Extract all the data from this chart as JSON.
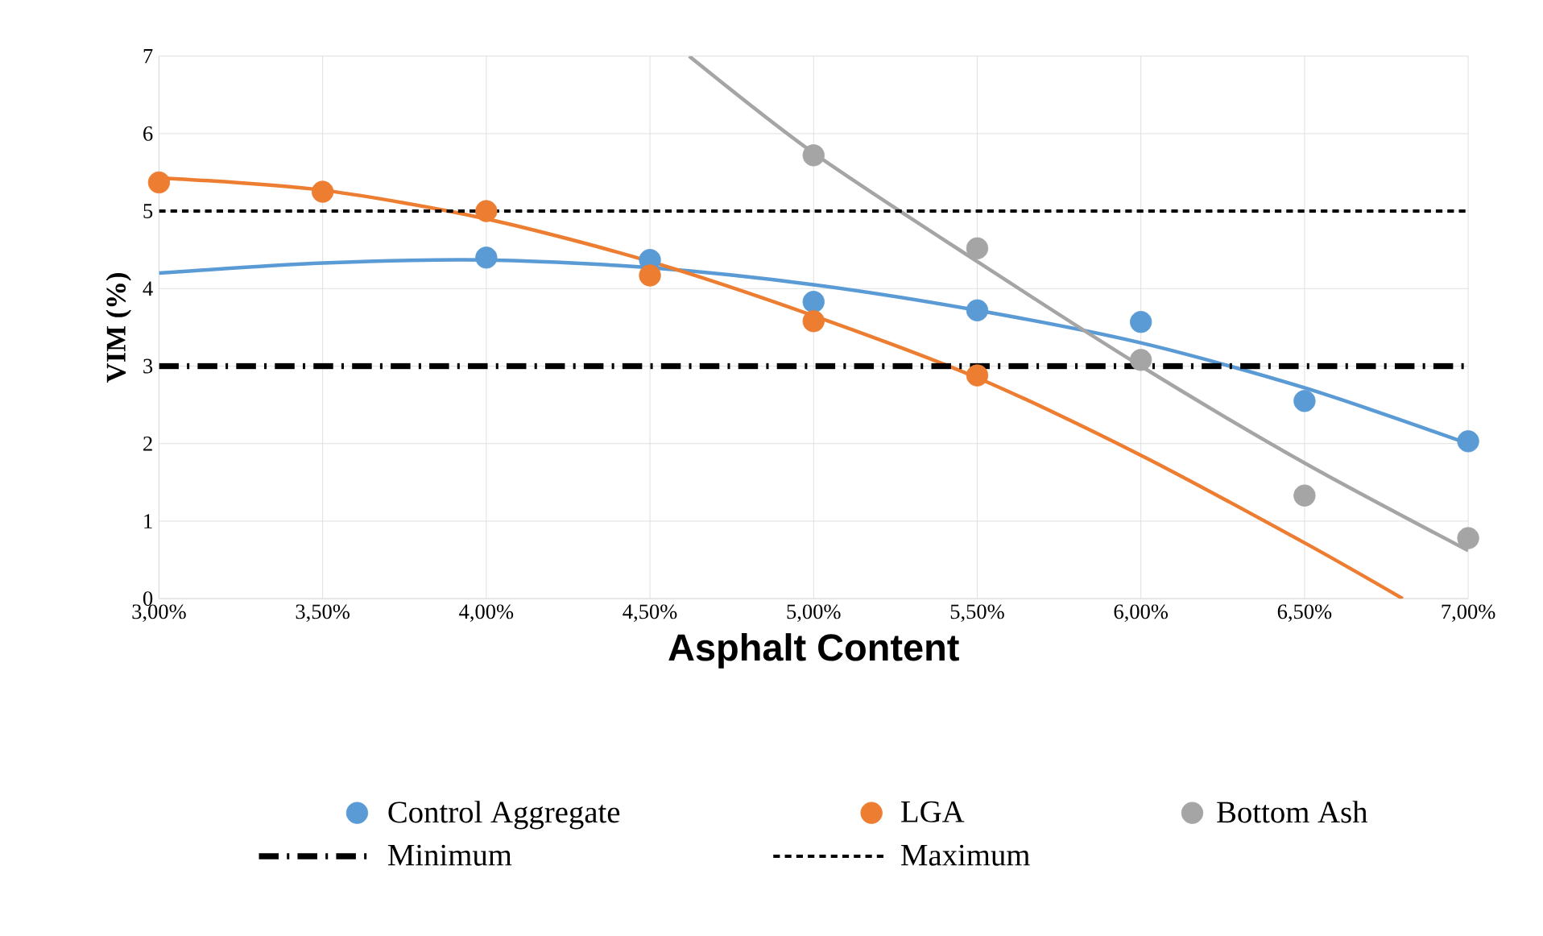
{
  "chart_data": {
    "type": "scatter",
    "xlabel": "Asphalt Content",
    "ylabel": "VIM (%)",
    "xlim": [
      3,
      7
    ],
    "ylim": [
      0,
      7
    ],
    "xticks": [
      {
        "value": 3,
        "label": "3,00%"
      },
      {
        "value": 3.5,
        "label": "3,50%"
      },
      {
        "value": 4,
        "label": "4,00%"
      },
      {
        "value": 4.5,
        "label": "4,50%"
      },
      {
        "value": 5,
        "label": "5,00%"
      },
      {
        "value": 5.5,
        "label": "5,50%"
      },
      {
        "value": 6,
        "label": "6,00%"
      },
      {
        "value": 6.5,
        "label": "6,50%"
      },
      {
        "value": 7,
        "label": "7,00%"
      }
    ],
    "yticks": [
      0,
      1,
      2,
      3,
      4,
      5,
      6,
      7
    ],
    "grid": true,
    "legend": "bottom",
    "series": [
      {
        "name": "Control Aggregate",
        "marker": "circle",
        "color": "#5b9bd5",
        "x": [
          4,
          4.5,
          5,
          5.5,
          6,
          6.5,
          7
        ],
        "values": [
          4.4,
          4.37,
          3.83,
          3.72,
          3.57,
          2.55,
          2.03
        ]
      },
      {
        "name": "LGA",
        "marker": "circle",
        "color": "#ed7d31",
        "x": [
          3,
          3.5,
          4,
          4.5,
          5,
          5.5
        ],
        "values": [
          5.37,
          5.25,
          5.0,
          4.17,
          3.58,
          2.88
        ]
      },
      {
        "name": "Bottom Ash",
        "marker": "circle",
        "color": "#a5a5a5",
        "x": [
          5,
          5.5,
          6,
          6.5,
          7
        ],
        "values": [
          5.72,
          4.52,
          3.08,
          1.33,
          0.78
        ]
      },
      {
        "type": "line",
        "marker": "none",
        "color": "#5b9bd5",
        "x": [
          3,
          3.5,
          4,
          4.5,
          5,
          5.5,
          6,
          6.5,
          7
        ],
        "values": [
          4.2,
          4.33,
          4.37,
          4.27,
          4.05,
          3.72,
          3.3,
          2.72,
          2.0
        ]
      },
      {
        "type": "line",
        "marker": "none",
        "color": "#ed7d31",
        "x": [
          3,
          3.5,
          4,
          4.5,
          5,
          5.5,
          6,
          6.5,
          6.8
        ],
        "values": [
          5.43,
          5.27,
          4.9,
          4.35,
          3.65,
          2.85,
          1.85,
          0.72,
          0
        ]
      },
      {
        "type": "line",
        "marker": "none",
        "color": "#a5a5a5",
        "x": [
          4.62,
          5,
          5.5,
          6,
          6.5,
          7
        ],
        "values": [
          7,
          5.75,
          4.35,
          3.0,
          1.75,
          0.62
        ]
      }
    ],
    "ref_lines": [
      {
        "axis": "y",
        "value": 3,
        "label": "Minimum",
        "color": "#000000",
        "line_style": "dashdot"
      },
      {
        "axis": "y",
        "value": 5,
        "label": "Maximum",
        "color": "#000000",
        "line_style": "dashed"
      }
    ]
  }
}
